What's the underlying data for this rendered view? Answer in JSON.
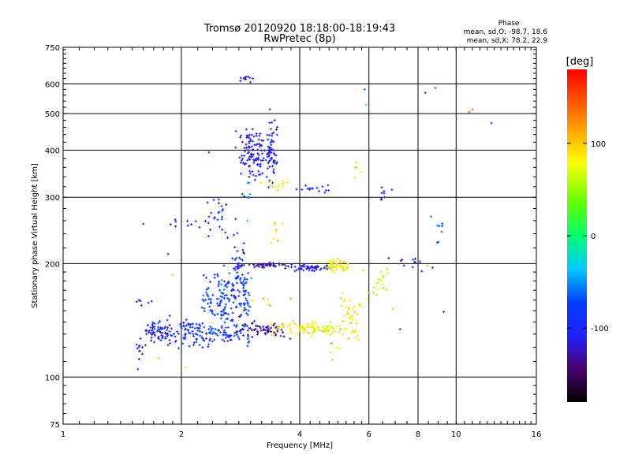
{
  "chart_data": {
    "type": "scatter",
    "title": "Tromsø 20120920 18:18:00-18:19:43",
    "subtitle": "RwPretec (8p)",
    "xlabel": "Frequency [MHz]",
    "ylabel": "Stationary phase Virtual Height [km]",
    "x_scale": "log",
    "y_scale": "log",
    "xlim": [
      1,
      16
    ],
    "ylim": [
      75,
      750
    ],
    "x_ticks": [
      1,
      2,
      4,
      6,
      8,
      10,
      16
    ],
    "x_tick_labels": [
      "1",
      "2",
      "4",
      "6",
      "8",
      "10",
      "16"
    ],
    "y_ticks": [
      75,
      100,
      200,
      300,
      400,
      500,
      600,
      750
    ],
    "y_tick_labels": [
      "75",
      "100",
      "200",
      "300",
      "400",
      "500",
      "600",
      "750"
    ],
    "grid": true,
    "phase_info": {
      "title": "Phase",
      "o_line": "mean, sd,O: -98.7, 18.6",
      "x_line": "mean, sd,X:  78.2, 22.9"
    },
    "colorbar": {
      "label": "[deg]",
      "range": [
        -180,
        180
      ],
      "tick_values": [
        100,
        0,
        -100
      ],
      "tick_labels": [
        "100",
        "0",
        "-100"
      ]
    },
    "clusters": [
      {
        "x": 1.72,
        "y": 132,
        "dx": 0.09,
        "dy": 4,
        "n": 60,
        "phase": -105
      },
      {
        "x": 1.57,
        "y": 118,
        "dx": 0.02,
        "dy": 6,
        "n": 10,
        "phase": -110
      },
      {
        "x": 1.58,
        "y": 157,
        "dx": 0.04,
        "dy": 3,
        "n": 6,
        "phase": -100
      },
      {
        "x": 2.1,
        "y": 130,
        "dx": 0.16,
        "dy": 6,
        "n": 80,
        "phase": -95
      },
      {
        "x": 2.55,
        "y": 130,
        "dx": 0.25,
        "dy": 3,
        "n": 60,
        "phase": -85
      },
      {
        "x": 2.5,
        "y": 160,
        "dx": 0.14,
        "dy": 15,
        "n": 110,
        "phase": -80
      },
      {
        "x": 2.8,
        "y": 185,
        "dx": 0.06,
        "dy": 25,
        "n": 70,
        "phase": -90
      },
      {
        "x": 2.95,
        "y": 150,
        "dx": 0.04,
        "dy": 20,
        "n": 30,
        "phase": -75
      },
      {
        "x": 3.25,
        "y": 133,
        "dx": 0.35,
        "dy": 3,
        "n": 60,
        "phase": -130
      },
      {
        "x": 3.3,
        "y": 198,
        "dx": 0.4,
        "dy": 1.2,
        "n": 45,
        "phase": -125
      },
      {
        "x": 2.55,
        "y": 265,
        "dx": 0.1,
        "dy": 15,
        "n": 25,
        "phase": -95
      },
      {
        "x": 2.05,
        "y": 255,
        "dx": 0.12,
        "dy": 4,
        "n": 10,
        "phase": -100
      },
      {
        "x": 3.05,
        "y": 390,
        "dx": 0.12,
        "dy": 35,
        "n": 110,
        "phase": -110
      },
      {
        "x": 3.4,
        "y": 400,
        "dx": 0.06,
        "dy": 40,
        "n": 60,
        "phase": -105
      },
      {
        "x": 2.93,
        "y": 615,
        "dx": 0.08,
        "dy": 8,
        "n": 10,
        "phase": -115
      },
      {
        "x": 4.3,
        "y": 195,
        "dx": 0.25,
        "dy": 2,
        "n": 50,
        "phase": -110
      },
      {
        "x": 4.95,
        "y": 198,
        "dx": 0.22,
        "dy": 4,
        "n": 50,
        "phase": 85
      },
      {
        "x": 3.9,
        "y": 135,
        "dx": 0.3,
        "dy": 3,
        "n": 40,
        "phase": 90
      },
      {
        "x": 4.65,
        "y": 134,
        "dx": 0.35,
        "dy": 3,
        "n": 50,
        "phase": 75
      },
      {
        "x": 5.4,
        "y": 145,
        "dx": 0.15,
        "dy": 12,
        "n": 40,
        "phase": 88
      },
      {
        "x": 3.5,
        "y": 322,
        "dx": 0.15,
        "dy": 5,
        "n": 12,
        "phase": 80
      },
      {
        "x": 4.3,
        "y": 317,
        "dx": 0.3,
        "dy": 5,
        "n": 15,
        "phase": -90
      },
      {
        "x": 3.5,
        "y": 240,
        "dx": 0.06,
        "dy": 12,
        "n": 8,
        "phase": 92
      },
      {
        "x": 6.4,
        "y": 175,
        "dx": 0.2,
        "dy": 12,
        "n": 20,
        "phase": 70
      },
      {
        "x": 6.6,
        "y": 307,
        "dx": 0.15,
        "dy": 8,
        "n": 8,
        "phase": -105
      },
      {
        "x": 5.6,
        "y": 350,
        "dx": 0.05,
        "dy": 10,
        "n": 5,
        "phase": 60
      },
      {
        "x": 3.3,
        "y": 157,
        "dx": 0.2,
        "dy": 4,
        "n": 6,
        "phase": 95
      },
      {
        "x": 2.95,
        "y": 300,
        "dx": 0.03,
        "dy": 25,
        "n": 8,
        "phase": -60
      },
      {
        "x": 7.8,
        "y": 200,
        "dx": 0.6,
        "dy": 4,
        "n": 12,
        "phase": -110
      },
      {
        "x": 9.0,
        "y": 235,
        "dx": 0.25,
        "dy": 25,
        "n": 8,
        "phase": -70
      },
      {
        "x": 4.9,
        "y": 118,
        "dx": 0.15,
        "dy": 3,
        "n": 5,
        "phase": 85
      }
    ],
    "points": [
      {
        "x": 5.85,
        "y": 580,
        "phase": -60
      },
      {
        "x": 5.9,
        "y": 528,
        "phase": 10
      },
      {
        "x": 8.35,
        "y": 568,
        "phase": -110
      },
      {
        "x": 8.85,
        "y": 585,
        "phase": 160
      },
      {
        "x": 10.8,
        "y": 505,
        "phase": 150
      },
      {
        "x": 11.0,
        "y": 513,
        "phase": 140
      },
      {
        "x": 12.3,
        "y": 472,
        "phase": -110
      },
      {
        "x": 1.85,
        "y": 212,
        "phase": -110
      },
      {
        "x": 1.9,
        "y": 187,
        "phase": 100
      },
      {
        "x": 1.75,
        "y": 112,
        "phase": 105
      },
      {
        "x": 2.05,
        "y": 106,
        "phase": 85
      },
      {
        "x": 1.6,
        "y": 255,
        "phase": -90
      },
      {
        "x": 2.35,
        "y": 395,
        "phase": -110
      },
      {
        "x": 7.2,
        "y": 134,
        "phase": -120
      },
      {
        "x": 9.3,
        "y": 149,
        "phase": -110
      },
      {
        "x": 8.45,
        "y": 198,
        "phase": 100
      }
    ]
  }
}
